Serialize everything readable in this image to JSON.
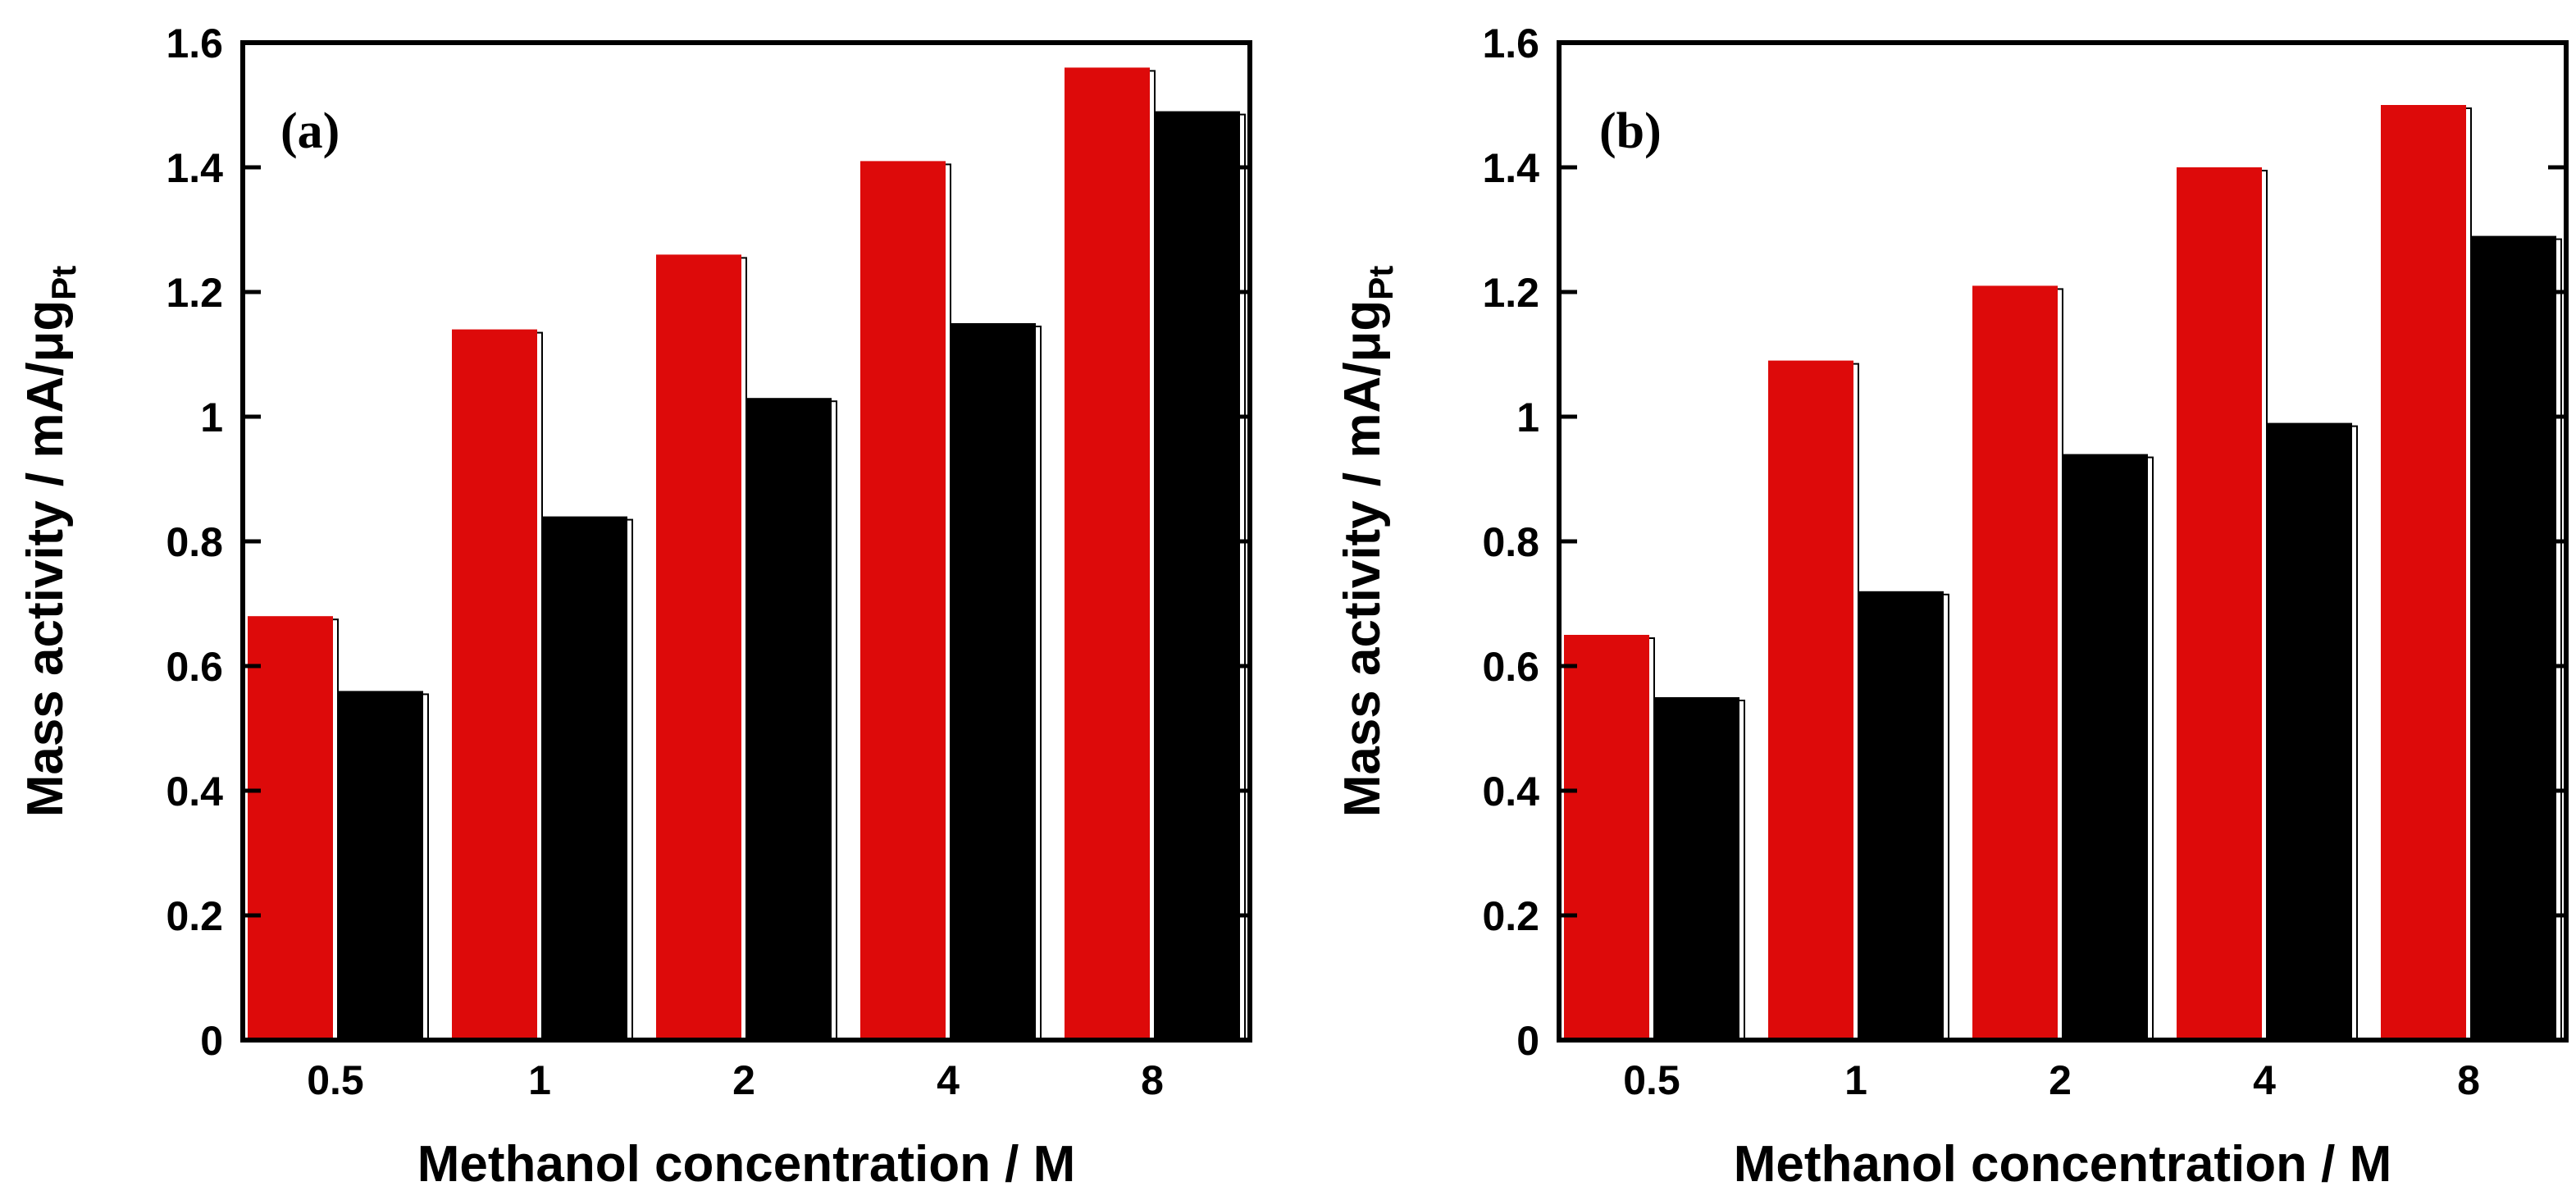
{
  "colors": {
    "series_1": "#dd0a0a",
    "series_2": "#000000",
    "axis": "#000000",
    "background": "#ffffff"
  },
  "chart_data": [
    {
      "type": "bar",
      "panel_label": "(a)",
      "categories": [
        "0.5",
        "1",
        "2",
        "4",
        "8"
      ],
      "series": [
        {
          "name": "red",
          "values": [
            0.68,
            1.14,
            1.26,
            1.41,
            1.56
          ]
        },
        {
          "name": "black",
          "values": [
            0.56,
            0.84,
            1.03,
            1.15,
            1.49
          ]
        }
      ],
      "xlabel": "Methanol concentration / M",
      "ylabel_main": "Mass activity / mA/μg",
      "ylabel_sub": "Pt",
      "ylim": [
        0,
        1.6
      ],
      "yticks": [
        "0",
        "0.2",
        "0.4",
        "0.6",
        "0.8",
        "1",
        "1.2",
        "1.4",
        "1.6"
      ],
      "legend": "none"
    },
    {
      "type": "bar",
      "panel_label": "(b)",
      "categories": [
        "0.5",
        "1",
        "2",
        "4",
        "8"
      ],
      "series": [
        {
          "name": "red",
          "values": [
            0.65,
            1.09,
            1.21,
            1.4,
            1.5
          ]
        },
        {
          "name": "black",
          "values": [
            0.55,
            0.72,
            0.94,
            0.99,
            1.29
          ]
        }
      ],
      "xlabel": "Methanol concentration / M",
      "ylabel_main": "Mass activity / mA/μg",
      "ylabel_sub": "Pt",
      "ylim": [
        0,
        1.6
      ],
      "yticks": [
        "0",
        "0.2",
        "0.4",
        "0.6",
        "0.8",
        "1",
        "1.2",
        "1.4",
        "1.6"
      ],
      "legend": "none"
    }
  ]
}
